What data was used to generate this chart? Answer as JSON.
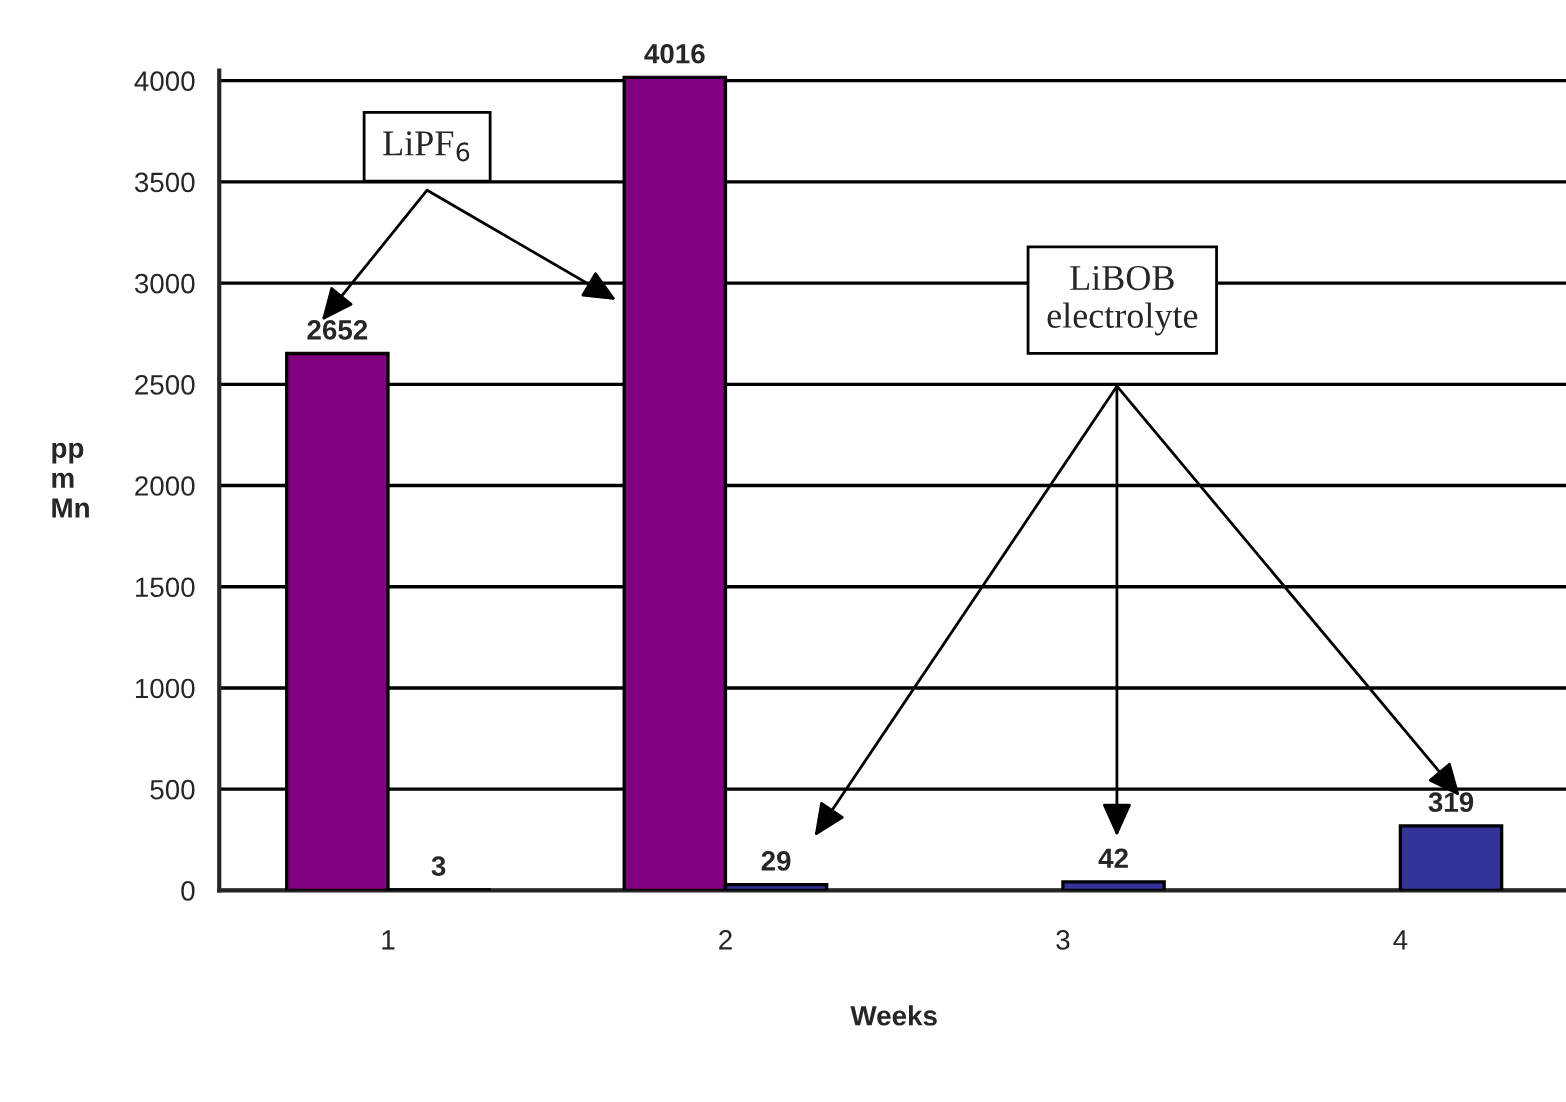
{
  "chart_data": {
    "type": "bar",
    "xlabel": "Weeks",
    "ylabel": "pp\nm\nMn",
    "categories": [
      "1",
      "2",
      "3",
      "4"
    ],
    "series": [
      {
        "color": "#800080",
        "values": [
          2652,
          4016,
          null,
          null
        ]
      },
      {
        "color": "#333399",
        "values": [
          3,
          29,
          42,
          319
        ]
      }
    ],
    "ylim": [
      0,
      4050
    ],
    "yticks": [
      0,
      500,
      1000,
      1500,
      2000,
      2500,
      3000,
      3500,
      4000
    ],
    "grid": "y",
    "data_labels": true,
    "annotations": [
      "LiPF$_{6}$",
      "LiBOB\nelectrolyte"
    ]
  }
}
